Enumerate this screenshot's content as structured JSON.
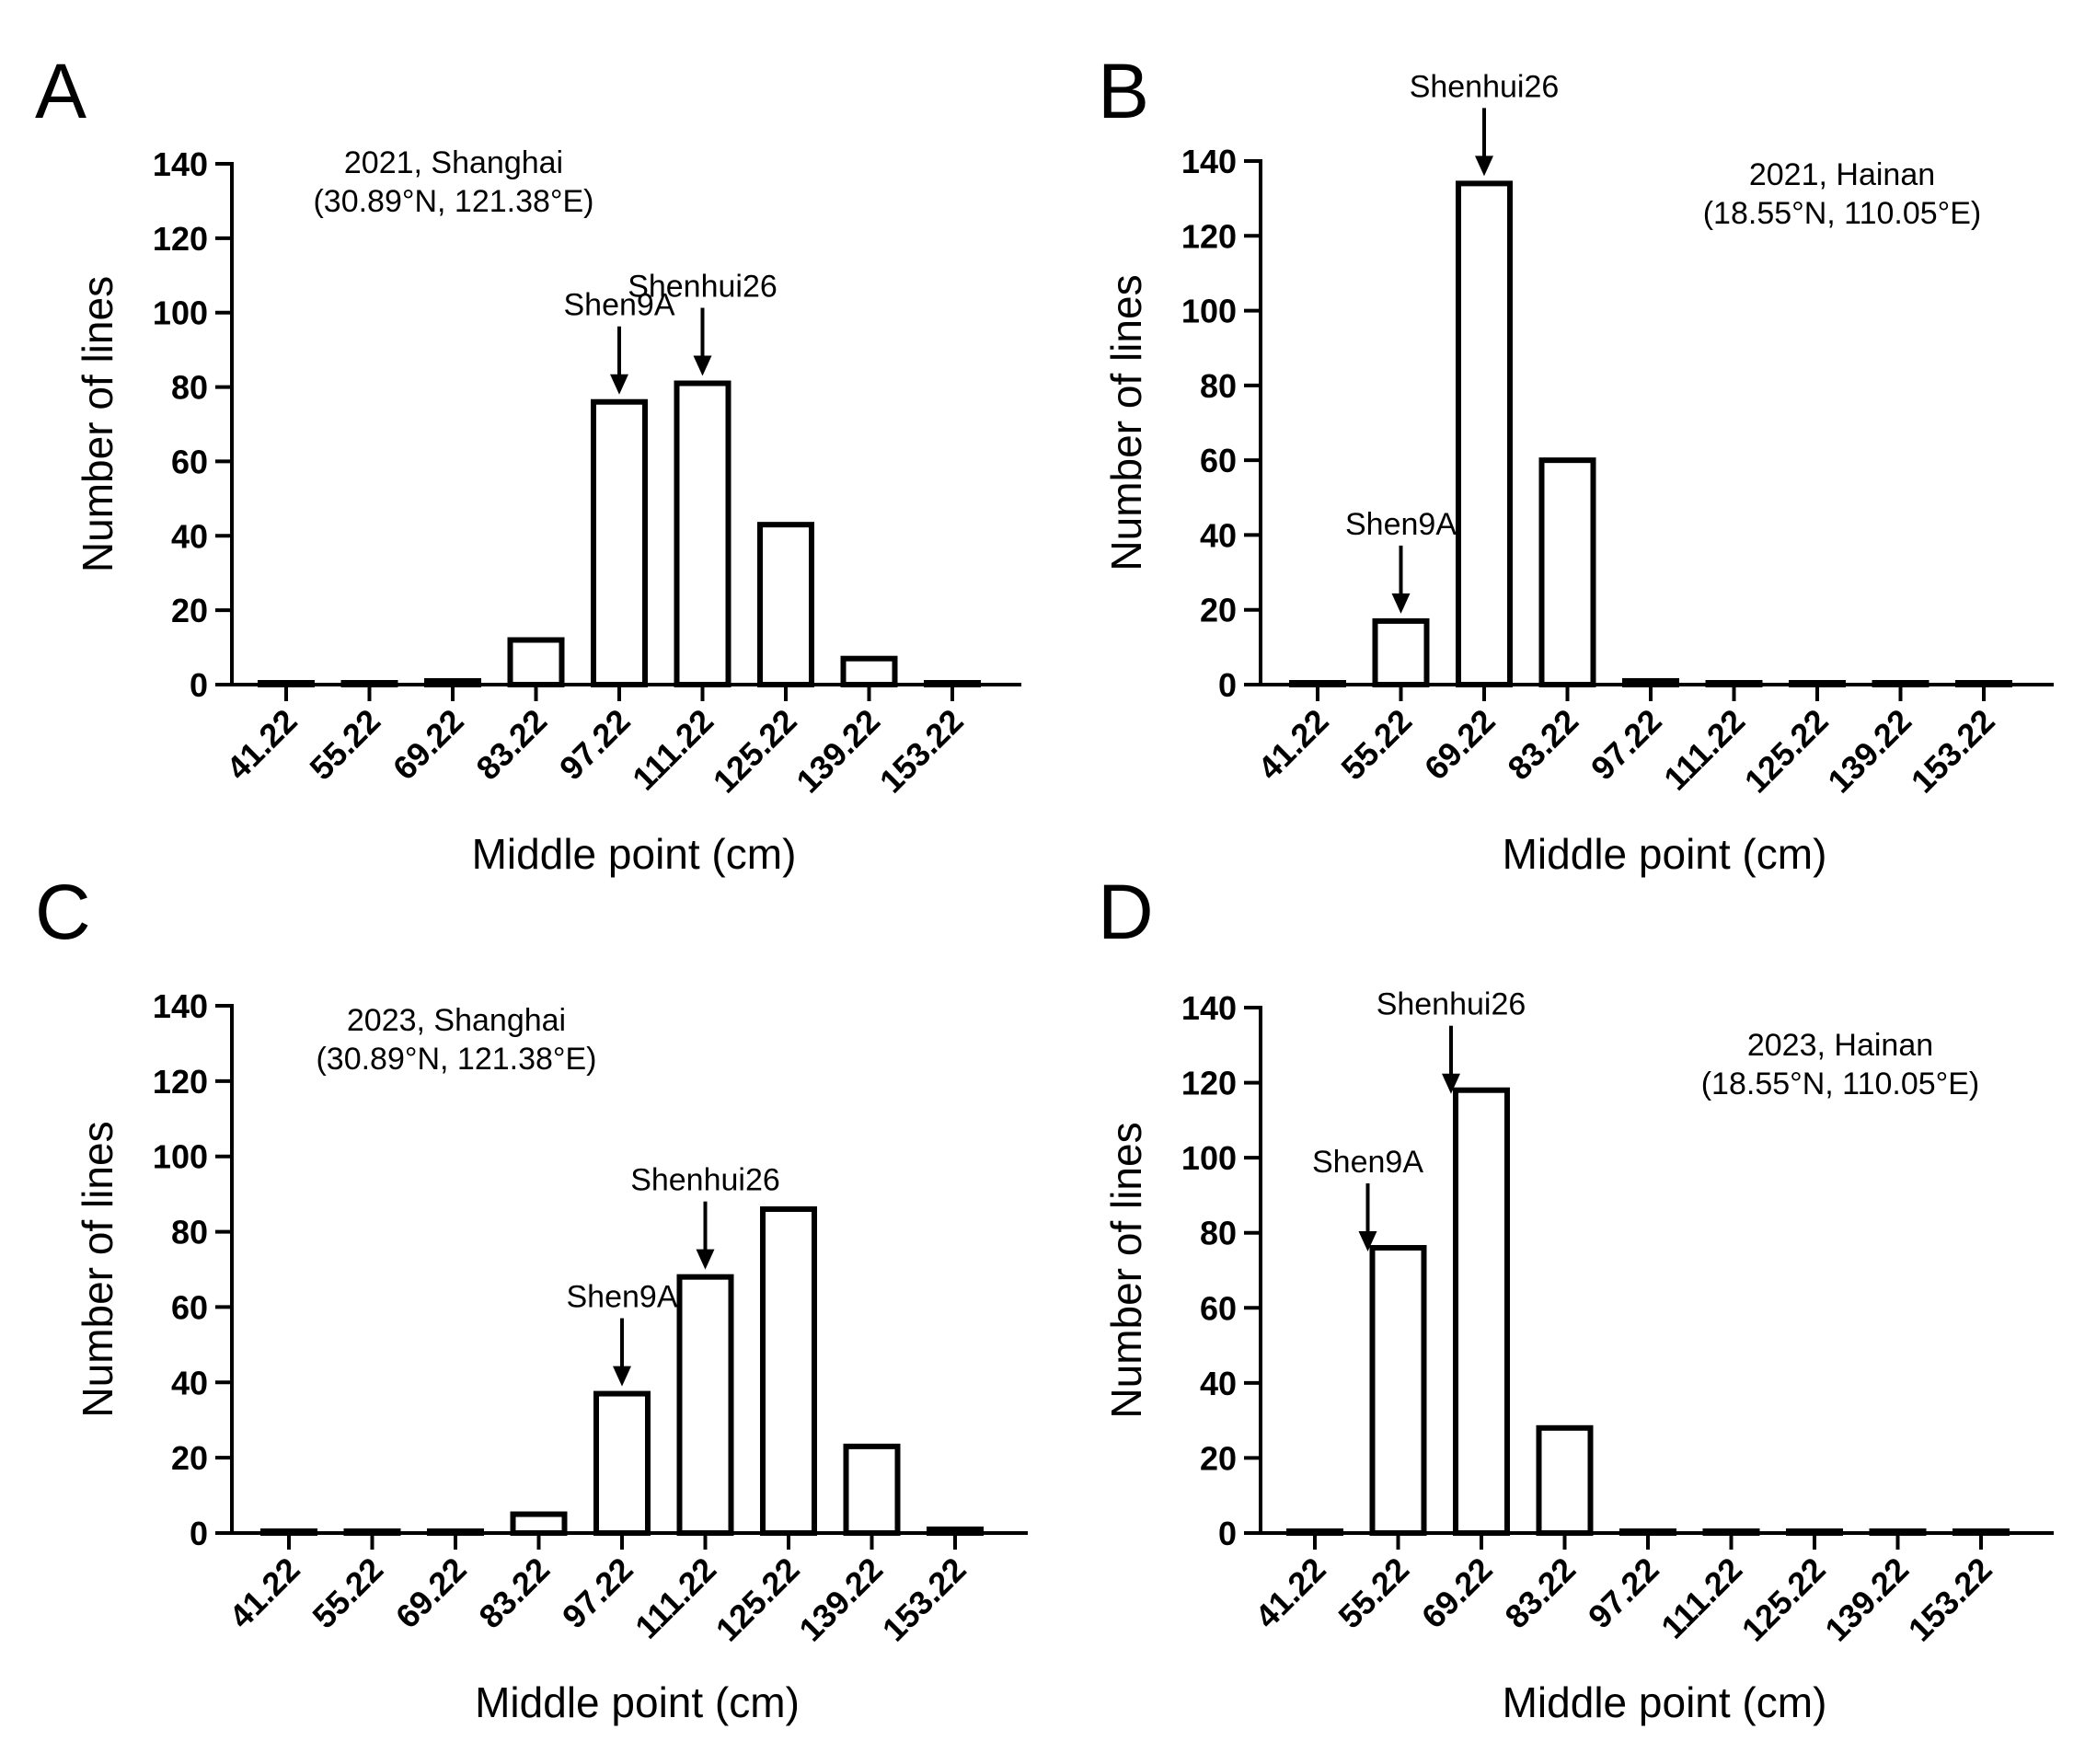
{
  "chart_data": [
    {
      "panel": "A",
      "type": "bar",
      "title_line1": "2021, Shanghai",
      "title_line2": "(30.89°N, 121.38°E)",
      "xlabel": "Middle point (cm)",
      "ylabel": "Number of lines",
      "categories": [
        "41.22",
        "55.22",
        "69.22",
        "83.22",
        "97.22",
        "111.22",
        "125.22",
        "139.22",
        "153.22"
      ],
      "values": [
        0,
        0,
        1,
        12,
        76,
        81,
        43,
        7,
        0
      ],
      "ylim": [
        0,
        140
      ],
      "yticks": [
        "0",
        "20",
        "40",
        "60",
        "80",
        "100",
        "120",
        "140"
      ],
      "annotations": [
        {
          "label": "Shen9A",
          "category": "97.22"
        },
        {
          "label": "Shenhui26",
          "category": "111.22"
        }
      ]
    },
    {
      "panel": "B",
      "type": "bar",
      "title_line1": "2021, Hainan",
      "title_line2": "(18.55°N, 110.05°E)",
      "xlabel": "Middle point (cm)",
      "ylabel": "Number of lines",
      "categories": [
        "41.22",
        "55.22",
        "69.22",
        "83.22",
        "97.22",
        "111.22",
        "125.22",
        "139.22",
        "153.22"
      ],
      "values": [
        0,
        17,
        134,
        60,
        1,
        0,
        0,
        0,
        0
      ],
      "ylim": [
        0,
        140
      ],
      "yticks": [
        "0",
        "20",
        "40",
        "60",
        "80",
        "100",
        "120",
        "140"
      ],
      "annotations": [
        {
          "label": "Shen9A",
          "category": "55.22"
        },
        {
          "label": "Shenhui26",
          "category": "69.22"
        }
      ]
    },
    {
      "panel": "C",
      "type": "bar",
      "title_line1": "2023, Shanghai",
      "title_line2": "(30.89°N, 121.38°E)",
      "xlabel": "Middle point (cm)",
      "ylabel": "Number of lines",
      "categories": [
        "41.22",
        "55.22",
        "69.22",
        "83.22",
        "97.22",
        "111.22",
        "125.22",
        "139.22",
        "153.22"
      ],
      "values": [
        0,
        0,
        0,
        5,
        37,
        68,
        86,
        23,
        1
      ],
      "ylim": [
        0,
        140
      ],
      "yticks": [
        "0",
        "20",
        "40",
        "60",
        "80",
        "100",
        "120",
        "140"
      ],
      "annotations": [
        {
          "label": "Shen9A",
          "category": "97.22"
        },
        {
          "label": "Shenhui26",
          "category": "111.22"
        }
      ]
    },
    {
      "panel": "D",
      "type": "bar",
      "title_line1": "2023, Hainan",
      "title_line2": "(18.55°N, 110.05°E)",
      "xlabel": "Middle point (cm)",
      "ylabel": "Number of lines",
      "categories": [
        "41.22",
        "55.22",
        "69.22",
        "83.22",
        "97.22",
        "111.22",
        "125.22",
        "139.22",
        "153.22"
      ],
      "values": [
        0,
        76,
        118,
        28,
        0,
        0,
        0,
        0,
        0
      ],
      "ylim": [
        0,
        140
      ],
      "yticks": [
        "0",
        "20",
        "40",
        "60",
        "80",
        "100",
        "120",
        "140"
      ],
      "annotations": [
        {
          "label": "Shen9A",
          "category": "55.22",
          "offset": "left"
        },
        {
          "label": "Shenhui26",
          "category": "69.22",
          "offset": "left"
        }
      ]
    }
  ]
}
